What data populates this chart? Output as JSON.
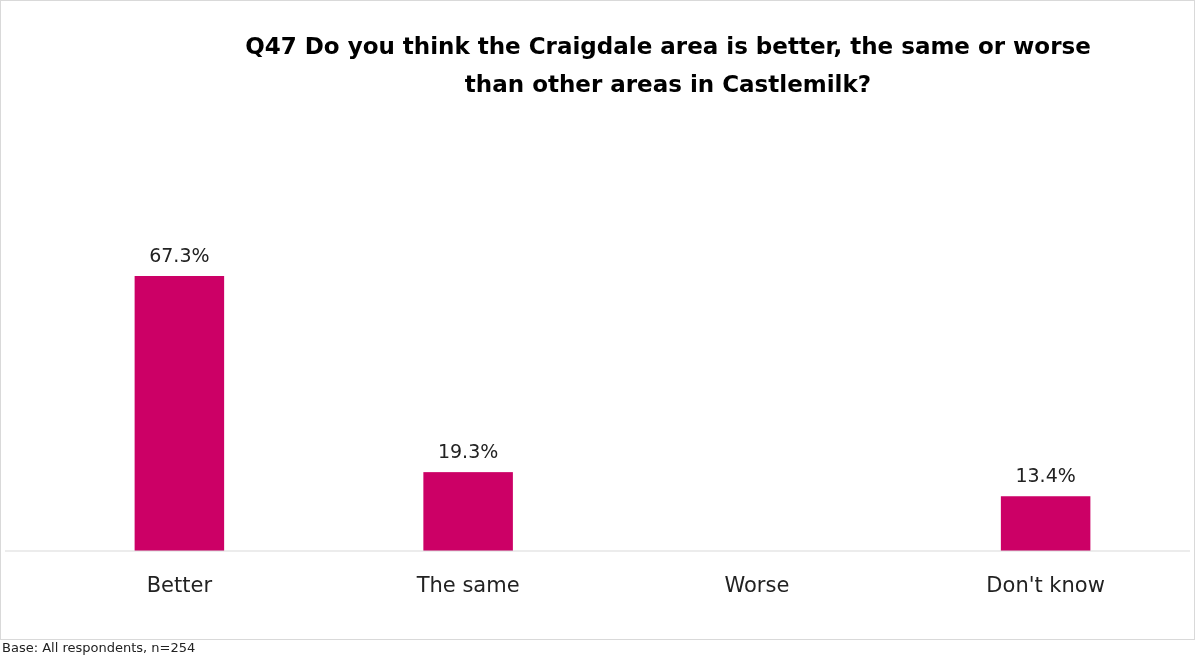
{
  "chart_data": {
    "type": "bar",
    "title": "Q47 Do you think the Craigdale area is better, the same or worse\nthan other areas in Castlemilk?",
    "categories": [
      "Better",
      "The same",
      "Worse",
      "Don't know"
    ],
    "values": [
      67.3,
      19.3,
      null,
      13.4
    ],
    "value_labels": [
      "67.3%",
      "19.3%",
      null,
      "13.4%"
    ],
    "color": "#cc0066",
    "annotations": [
      "Base: All respondents, n=254"
    ]
  }
}
